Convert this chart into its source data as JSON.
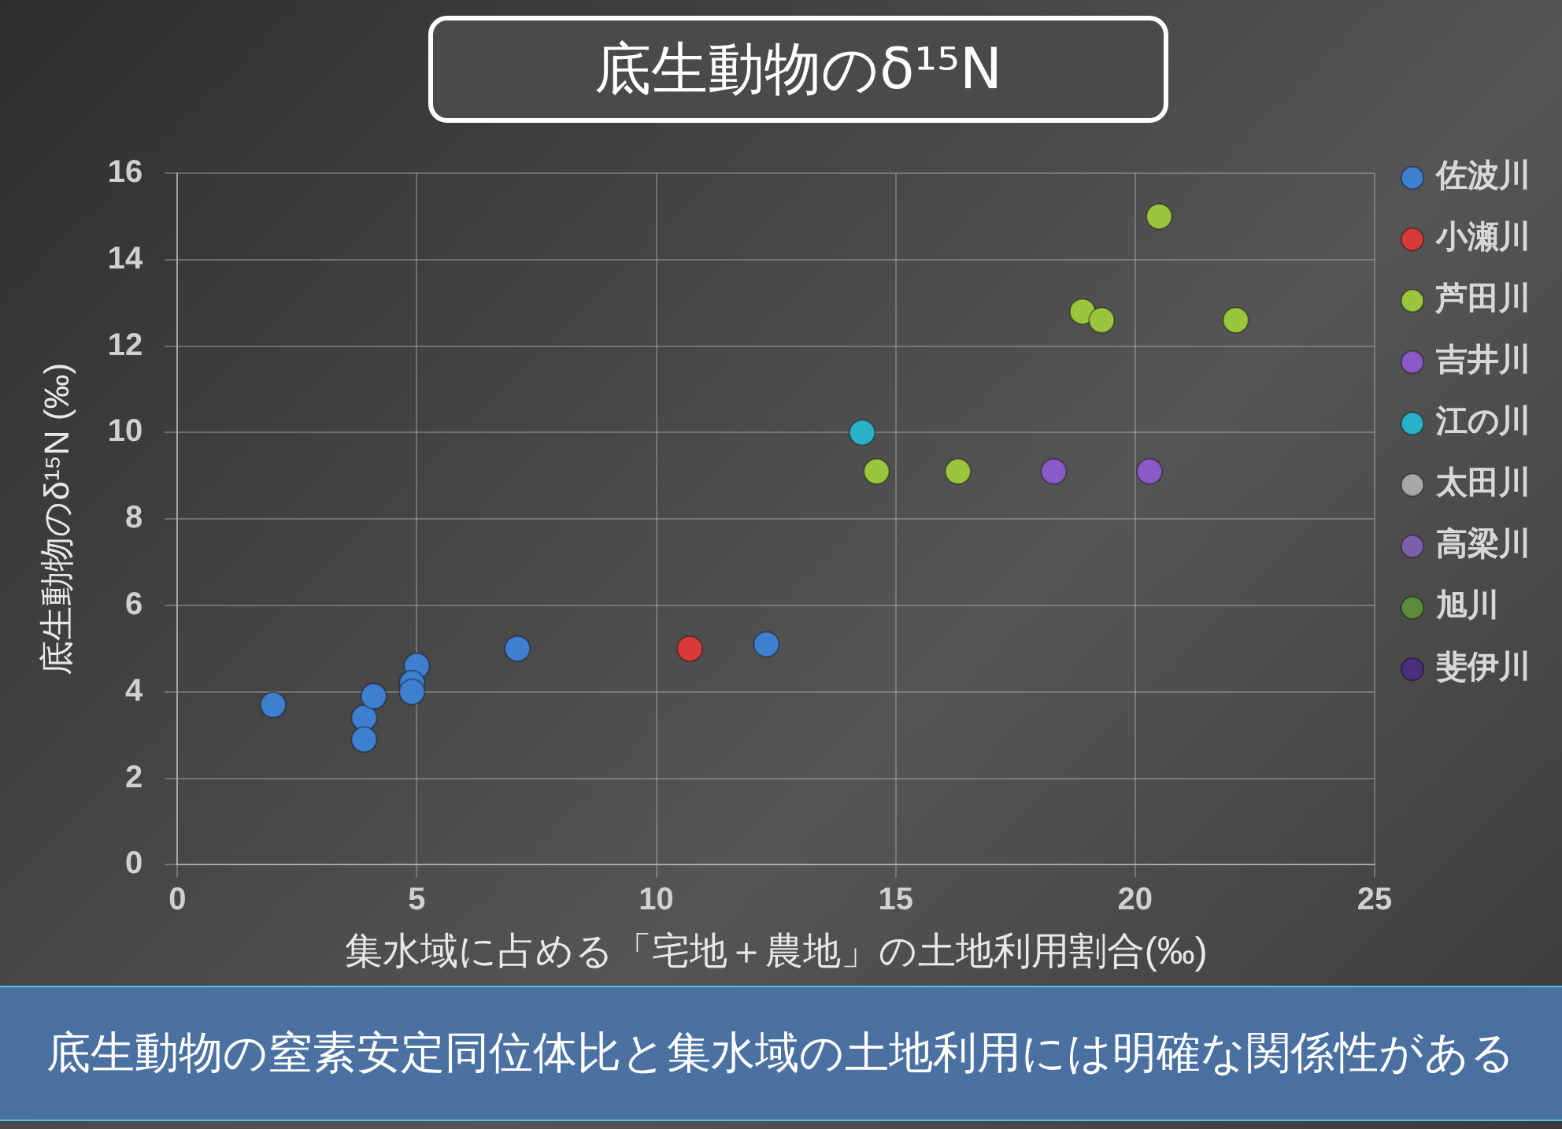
{
  "chart_data": {
    "type": "scatter",
    "title": "底生動物のδ¹⁵N",
    "xlabel": "集水域に占める「宅地＋農地」の土地利用割合(‰)",
    "ylabel": "底生動物のδ¹⁵N (‰)",
    "annotations": [
      "底生動物の窒素安定同位体比と集水域の土地利用には明確な関係性がある"
    ],
    "xlim": [
      0,
      25
    ],
    "xticks": [
      0,
      5,
      10,
      15,
      20,
      25
    ],
    "ylim": [
      0,
      16
    ],
    "yticks": [
      0,
      2,
      4,
      6,
      8,
      10,
      12,
      14,
      16
    ],
    "grid": true,
    "legend": "right",
    "marker": "circle",
    "series": [
      {
        "name": "佐波川",
        "color": "#3f7fd0",
        "x": [
          2.0,
          3.9,
          3.9,
          4.1,
          5.0,
          4.9,
          4.9,
          7.1,
          12.3
        ],
        "values": [
          3.7,
          3.4,
          2.9,
          3.9,
          4.6,
          4.2,
          4.0,
          5.0,
          5.1
        ]
      },
      {
        "name": "小瀬川",
        "color": "#d83a3a",
        "x": [
          10.7
        ],
        "values": [
          5.0
        ]
      },
      {
        "name": "芦田川",
        "color": "#9bc53d",
        "x": [
          20.5,
          18.9,
          19.3,
          22.1,
          14.6,
          16.3
        ],
        "values": [
          15.0,
          12.8,
          12.6,
          12.6,
          9.1,
          9.1
        ]
      },
      {
        "name": "吉井川",
        "color": "#8a5ac8",
        "x": [
          18.3,
          20.3
        ],
        "values": [
          9.1,
          9.1
        ]
      },
      {
        "name": "江の川",
        "color": "#2ab0c8",
        "x": [
          14.3
        ],
        "values": [
          10.0
        ]
      },
      {
        "name": "太田川",
        "color": "#a8a8a8"
      },
      {
        "name": "高梁川",
        "color": "#7b5fa8"
      },
      {
        "name": "旭川",
        "color": "#5a8a3a"
      },
      {
        "name": "斐伊川",
        "color": "#4b2d7f"
      }
    ]
  }
}
